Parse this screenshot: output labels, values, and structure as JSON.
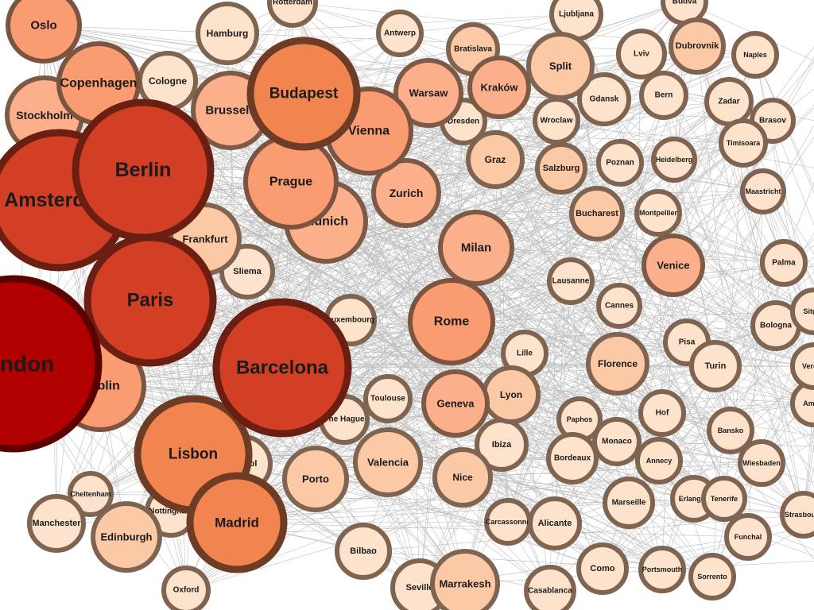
{
  "graph": {
    "colors": {
      "background": "#ffffff",
      "edge": "#8a8a8a",
      "label": "#1b1b1b"
    },
    "nodes": [
      {
        "name": "Oslo",
        "rank": 4
      },
      {
        "name": "Copenhagen",
        "rank": 4
      },
      {
        "name": "Stockholm",
        "rank": 3
      },
      {
        "name": "Amsterdam",
        "rank": 6
      },
      {
        "name": "Berlin",
        "rank": 6
      },
      {
        "name": "Paris",
        "rank": 6
      },
      {
        "name": "London",
        "rank": 7
      },
      {
        "name": "Dublin",
        "rank": 4
      },
      {
        "name": "Frankfurt",
        "rank": 2
      },
      {
        "name": "Sliema",
        "rank": 1
      },
      {
        "name": "Hamburg",
        "rank": 1
      },
      {
        "name": "Rotterdam",
        "rank": 1
      },
      {
        "name": "Cologne",
        "rank": 1
      },
      {
        "name": "Brussels",
        "rank": 3
      },
      {
        "name": "Budapest",
        "rank": 5
      },
      {
        "name": "Vienna",
        "rank": 4
      },
      {
        "name": "Prague",
        "rank": 4
      },
      {
        "name": "Munich",
        "rank": 3
      },
      {
        "name": "Zurich",
        "rank": 3
      },
      {
        "name": "Antwerp",
        "rank": 1
      },
      {
        "name": "Bratislava",
        "rank": 2
      },
      {
        "name": "Warsaw",
        "rank": 3
      },
      {
        "name": "Dresden",
        "rank": 1
      },
      {
        "name": "Kraków",
        "rank": 3
      },
      {
        "name": "Ljubljana",
        "rank": 1
      },
      {
        "name": "Split",
        "rank": 2
      },
      {
        "name": "Gdansk",
        "rank": 1
      },
      {
        "name": "Wroclaw",
        "rank": 1
      },
      {
        "name": "Graz",
        "rank": 2
      },
      {
        "name": "Salzburg",
        "rank": 2
      },
      {
        "name": "Lviv",
        "rank": 1
      },
      {
        "name": "Budva",
        "rank": 1
      },
      {
        "name": "Dubrovnik",
        "rank": 2
      },
      {
        "name": "Naples",
        "rank": 1
      },
      {
        "name": "Bern",
        "rank": 1
      },
      {
        "name": "Zadar",
        "rank": 1
      },
      {
        "name": "Brasov",
        "rank": 1
      },
      {
        "name": "Poznan",
        "rank": 1
      },
      {
        "name": "Heidelberg",
        "rank": 1
      },
      {
        "name": "Timisoara",
        "rank": 1
      },
      {
        "name": "Maastricht",
        "rank": 1
      },
      {
        "name": "Bucharest",
        "rank": 2
      },
      {
        "name": "Montpellier",
        "rank": 1
      },
      {
        "name": "Milan",
        "rank": 3
      },
      {
        "name": "Lausanne",
        "rank": 1
      },
      {
        "name": "Venice",
        "rank": 3
      },
      {
        "name": "Palma",
        "rank": 1
      },
      {
        "name": "Cannes",
        "rank": 1
      },
      {
        "name": "Rome",
        "rank": 4
      },
      {
        "name": "Luxembourg",
        "rank": 1
      },
      {
        "name": "Barcelona",
        "rank": 6
      },
      {
        "name": "Lille",
        "rank": 1
      },
      {
        "name": "Florence",
        "rank": 2
      },
      {
        "name": "Pisa",
        "rank": 1
      },
      {
        "name": "Turin",
        "rank": 1
      },
      {
        "name": "Bologna",
        "rank": 1
      },
      {
        "name": "Toulouse",
        "rank": 1
      },
      {
        "name": "The Hague",
        "rank": 1
      },
      {
        "name": "Geneva",
        "rank": 3
      },
      {
        "name": "Lyon",
        "rank": 2
      },
      {
        "name": "Paphos",
        "rank": 1
      },
      {
        "name": "Hof",
        "rank": 1
      },
      {
        "name": "Monaco",
        "rank": 1
      },
      {
        "name": "Ibiza",
        "rank": 1
      },
      {
        "name": "Bordeaux",
        "rank": 1
      },
      {
        "name": "Bansko",
        "rank": 1
      },
      {
        "name": "Annecy",
        "rank": 1
      },
      {
        "name": "Wiesbaden",
        "rank": 1
      },
      {
        "name": "Lisbon",
        "rank": 5
      },
      {
        "name": "Bristol",
        "rank": 1
      },
      {
        "name": "Valencia",
        "rank": 2
      },
      {
        "name": "Nice",
        "rank": 2
      },
      {
        "name": "Porto",
        "rank": 2
      },
      {
        "name": "Marseille",
        "rank": 1
      },
      {
        "name": "Erlangen",
        "rank": 1
      },
      {
        "name": "Tenerife",
        "rank": 1
      },
      {
        "name": "Strasbourg",
        "rank": 1
      },
      {
        "name": "Cheltenham",
        "rank": 1
      },
      {
        "name": "Manchester",
        "rank": 1
      },
      {
        "name": "Edinburgh",
        "rank": 2
      },
      {
        "name": "Nottingham",
        "rank": 1
      },
      {
        "name": "Madrid",
        "rank": 5
      },
      {
        "name": "Carcassonne",
        "rank": 1
      },
      {
        "name": "Alicante",
        "rank": 1
      },
      {
        "name": "Funchal",
        "rank": 1
      },
      {
        "name": "Bilbao",
        "rank": 1
      },
      {
        "name": "Seville",
        "rank": 1
      },
      {
        "name": "Marrakesh",
        "rank": 2
      },
      {
        "name": "Como",
        "rank": 1
      },
      {
        "name": "Portsmouth",
        "rank": 1
      },
      {
        "name": "Sorrento",
        "rank": 1
      },
      {
        "name": "Oxford",
        "rank": 1
      },
      {
        "name": "Casablanca",
        "rank": 1
      },
      {
        "name": "Sitges",
        "rank": 1
      },
      {
        "name": "Amalfi",
        "rank": 1
      },
      {
        "name": "Verona",
        "rank": 1
      }
    ],
    "rank_colors": {
      "1": {
        "fill": "#fde3cb",
        "stroke": "#7f6451"
      },
      "2": {
        "fill": "#fcc9a6",
        "stroke": "#7f6451"
      },
      "3": {
        "fill": "#fbb08b",
        "stroke": "#7c5a46"
      },
      "4": {
        "fill": "#f99c71",
        "stroke": "#7a5440"
      },
      "5": {
        "fill": "#f2844f",
        "stroke": "#6e3c24"
      },
      "6": {
        "fill": "#d23f24",
        "stroke": "#6b1f12"
      },
      "7": {
        "fill": "#b10000",
        "stroke": "#5c0000"
      }
    }
  }
}
